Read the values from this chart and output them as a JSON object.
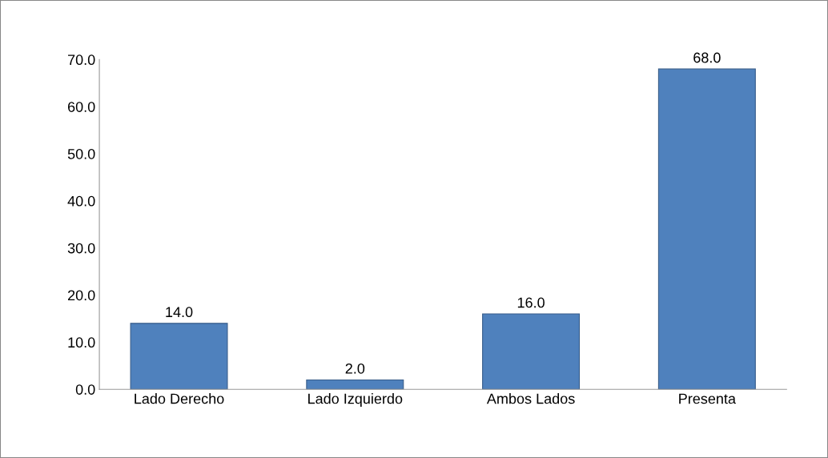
{
  "chart_data": {
    "type": "bar",
    "categories": [
      "Lado Derecho",
      "Lado Izquierdo",
      "Ambos Lados",
      "Presenta"
    ],
    "values": [
      14.0,
      2.0,
      16.0,
      68.0
    ],
    "value_labels": [
      "14.0",
      "2.0",
      "16.0",
      "68.0"
    ],
    "color": "#4f81bd",
    "ylim": [
      0,
      70
    ],
    "yticks": [
      {
        "value": 0,
        "label": "0.0"
      },
      {
        "value": 10,
        "label": "10.0"
      },
      {
        "value": 20,
        "label": "20.0"
      },
      {
        "value": 30,
        "label": "30.0"
      },
      {
        "value": 40,
        "label": "40.0"
      },
      {
        "value": 50,
        "label": "50.0"
      },
      {
        "value": 60,
        "label": "60.0"
      },
      {
        "value": 70,
        "label": "70.0"
      }
    ],
    "grid": false,
    "legend": false
  }
}
